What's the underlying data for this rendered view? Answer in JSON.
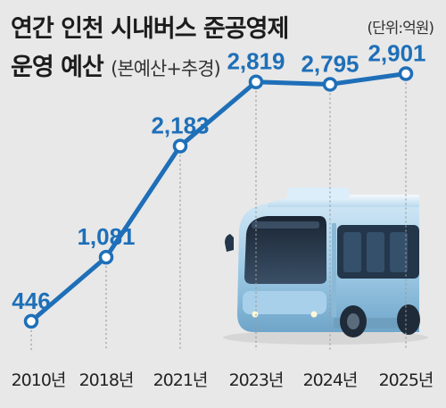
{
  "header": {
    "title_line1": "연간 인천 시내버스 준공영제",
    "title_line2_main": "운영 예산",
    "title_line2_sub": "(본예산+추경)",
    "unit": "(단위:억원)"
  },
  "colors": {
    "background": "#e8e8e8",
    "line": "#1e6fb8",
    "label": "#1e6fb8",
    "bus_body": "#9fcbe6",
    "bus_dark": "#233447"
  },
  "illustration": "bus-illustration",
  "chart_data": {
    "type": "line",
    "x": [
      "2010년",
      "2018년",
      "2021년",
      "2023년",
      "2024년",
      "2025년"
    ],
    "series": [
      {
        "values": [
          446,
          1081,
          2183,
          2819,
          2795,
          2901
        ]
      }
    ],
    "value_labels": [
      "446",
      "1,081",
      "2,183",
      "2,819",
      "2,795",
      "2,901"
    ],
    "ylim": [
      250,
      3100
    ],
    "grid": false,
    "dropLines": true,
    "unit": "억원"
  }
}
